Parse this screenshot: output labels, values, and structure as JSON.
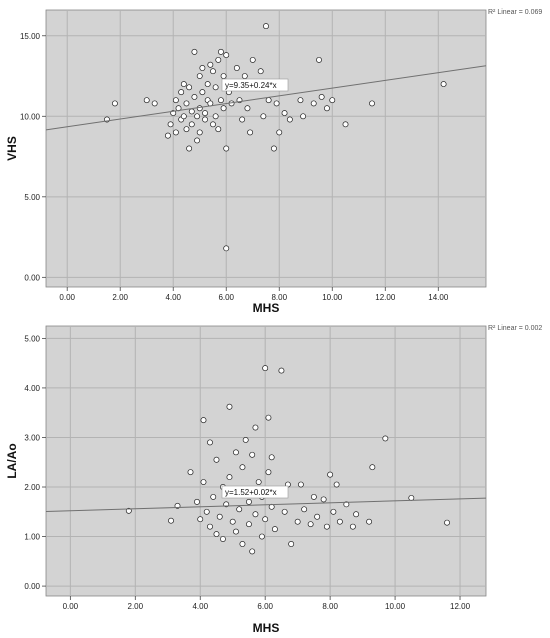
{
  "chart_data": [
    {
      "type": "scatter",
      "xlabel": "MHS",
      "ylabel": "VHS",
      "xlim": [
        -0.8,
        15.8
      ],
      "ylim": [
        -0.6,
        16.6
      ],
      "xticks": [
        0,
        2,
        4,
        6,
        8,
        10,
        12,
        14
      ],
      "xtick_labels": [
        "0.00",
        "2.00",
        "4.00",
        "6.00",
        "8.00",
        "10.00",
        "12.00",
        "14.00"
      ],
      "yticks": [
        0,
        5,
        10,
        15
      ],
      "ytick_labels": [
        "0.00",
        "5.00",
        "10.00",
        "15.00"
      ],
      "grid": true,
      "fit_line": {
        "intercept": 9.35,
        "slope": 0.24
      },
      "equation_label": "y=9.35+0.24*x",
      "r2_label": "R² Linear = 0.069",
      "series": [
        {
          "points": [
            [
              1.5,
              9.8
            ],
            [
              1.8,
              10.8
            ],
            [
              3.0,
              11.0
            ],
            [
              3.3,
              10.8
            ],
            [
              3.8,
              8.8
            ],
            [
              3.9,
              9.5
            ],
            [
              4.0,
              10.2
            ],
            [
              4.1,
              11.0
            ],
            [
              4.1,
              9.0
            ],
            [
              4.2,
              10.5
            ],
            [
              4.3,
              9.8
            ],
            [
              4.3,
              11.5
            ],
            [
              4.4,
              10.0
            ],
            [
              4.4,
              12.0
            ],
            [
              4.5,
              9.2
            ],
            [
              4.5,
              10.8
            ],
            [
              4.6,
              11.8
            ],
            [
              4.6,
              8.0
            ],
            [
              4.7,
              10.3
            ],
            [
              4.7,
              9.5
            ],
            [
              4.8,
              14.0
            ],
            [
              4.8,
              11.2
            ],
            [
              4.9,
              10.0
            ],
            [
              4.9,
              8.5
            ],
            [
              5.0,
              12.5
            ],
            [
              5.0,
              10.5
            ],
            [
              5.0,
              9.0
            ],
            [
              5.1,
              11.5
            ],
            [
              5.1,
              13.0
            ],
            [
              5.2,
              10.2
            ],
            [
              5.2,
              9.8
            ],
            [
              5.3,
              12.0
            ],
            [
              5.3,
              11.0
            ],
            [
              5.4,
              13.2
            ],
            [
              5.4,
              10.8
            ],
            [
              5.5,
              9.5
            ],
            [
              5.5,
              12.8
            ],
            [
              5.6,
              11.8
            ],
            [
              5.6,
              10.0
            ],
            [
              5.7,
              13.5
            ],
            [
              5.7,
              9.2
            ],
            [
              5.8,
              14.0
            ],
            [
              5.8,
              11.0
            ],
            [
              5.9,
              12.5
            ],
            [
              5.9,
              10.5
            ],
            [
              6.0,
              13.8
            ],
            [
              6.0,
              1.8
            ],
            [
              6.0,
              8.0
            ],
            [
              6.1,
              11.5
            ],
            [
              6.2,
              10.8
            ],
            [
              6.3,
              12.0
            ],
            [
              6.4,
              13.0
            ],
            [
              6.5,
              11.0
            ],
            [
              6.6,
              9.8
            ],
            [
              6.7,
              12.5
            ],
            [
              6.8,
              10.5
            ],
            [
              6.9,
              9.0
            ],
            [
              7.0,
              13.5
            ],
            [
              7.1,
              11.8
            ],
            [
              7.3,
              12.8
            ],
            [
              7.4,
              10.0
            ],
            [
              7.5,
              15.6
            ],
            [
              7.6,
              11.0
            ],
            [
              7.7,
              12.0
            ],
            [
              7.8,
              8.0
            ],
            [
              7.9,
              10.8
            ],
            [
              8.0,
              9.0
            ],
            [
              8.1,
              12.0
            ],
            [
              8.2,
              10.2
            ],
            [
              8.4,
              9.8
            ],
            [
              8.8,
              11.0
            ],
            [
              8.9,
              10.0
            ],
            [
              9.3,
              10.8
            ],
            [
              9.5,
              13.5
            ],
            [
              9.6,
              11.2
            ],
            [
              9.8,
              10.5
            ],
            [
              10.0,
              11.0
            ],
            [
              10.5,
              9.5
            ],
            [
              11.5,
              10.8
            ],
            [
              14.2,
              12.0
            ]
          ]
        }
      ]
    },
    {
      "type": "scatter",
      "xlabel": "MHS",
      "ylabel": "LA/Ao",
      "xlim": [
        -0.75,
        12.8
      ],
      "ylim": [
        -0.2,
        5.25
      ],
      "xticks": [
        0,
        2,
        4,
        6,
        8,
        10,
        12
      ],
      "xtick_labels": [
        "0.00",
        "2.00",
        "4.00",
        "6.00",
        "8.00",
        "10.00",
        "12.00"
      ],
      "yticks": [
        0,
        1,
        2,
        3,
        4,
        5
      ],
      "ytick_labels": [
        "0.00",
        "1.00",
        "2.00",
        "3.00",
        "4.00",
        "5.00"
      ],
      "grid": true,
      "fit_line": {
        "intercept": 1.52,
        "slope": 0.02
      },
      "equation_label": "y=1.52+0.02*x",
      "r2_label": "R² Linear = 0.002",
      "series": [
        {
          "points": [
            [
              1.8,
              1.52
            ],
            [
              3.1,
              1.32
            ],
            [
              3.3,
              1.62
            ],
            [
              3.7,
              2.3
            ],
            [
              3.9,
              1.7
            ],
            [
              4.0,
              1.35
            ],
            [
              4.1,
              3.35
            ],
            [
              4.1,
              2.1
            ],
            [
              4.2,
              1.5
            ],
            [
              4.3,
              2.9
            ],
            [
              4.3,
              1.2
            ],
            [
              4.4,
              1.8
            ],
            [
              4.5,
              1.05
            ],
            [
              4.5,
              2.55
            ],
            [
              4.6,
              1.4
            ],
            [
              4.7,
              2.0
            ],
            [
              4.7,
              0.95
            ],
            [
              4.8,
              1.65
            ],
            [
              4.9,
              3.62
            ],
            [
              4.9,
              2.2
            ],
            [
              5.0,
              1.3
            ],
            [
              5.0,
              1.85
            ],
            [
              5.1,
              2.7
            ],
            [
              5.1,
              1.1
            ],
            [
              5.2,
              1.55
            ],
            [
              5.3,
              2.4
            ],
            [
              5.3,
              0.85
            ],
            [
              5.4,
              1.95
            ],
            [
              5.4,
              2.95
            ],
            [
              5.5,
              1.25
            ],
            [
              5.5,
              1.7
            ],
            [
              5.6,
              2.65
            ],
            [
              5.6,
              0.7
            ],
            [
              5.7,
              1.45
            ],
            [
              5.7,
              3.2
            ],
            [
              5.8,
              2.1
            ],
            [
              5.9,
              1.0
            ],
            [
              5.9,
              1.8
            ],
            [
              6.0,
              4.4
            ],
            [
              6.0,
              1.35
            ],
            [
              6.1,
              3.4
            ],
            [
              6.1,
              2.3
            ],
            [
              6.2,
              1.6
            ],
            [
              6.2,
              2.6
            ],
            [
              6.3,
              1.15
            ],
            [
              6.4,
              1.9
            ],
            [
              6.5,
              4.35
            ],
            [
              6.6,
              1.5
            ],
            [
              6.7,
              2.05
            ],
            [
              6.8,
              0.85
            ],
            [
              7.0,
              1.3
            ],
            [
              7.1,
              2.05
            ],
            [
              7.2,
              1.55
            ],
            [
              7.4,
              1.25
            ],
            [
              7.5,
              1.8
            ],
            [
              7.6,
              1.4
            ],
            [
              7.8,
              1.75
            ],
            [
              7.9,
              1.2
            ],
            [
              8.0,
              2.25
            ],
            [
              8.1,
              1.5
            ],
            [
              8.2,
              2.05
            ],
            [
              8.3,
              1.3
            ],
            [
              8.5,
              1.65
            ],
            [
              8.7,
              1.2
            ],
            [
              8.8,
              1.45
            ],
            [
              9.2,
              1.3
            ],
            [
              9.3,
              2.4
            ],
            [
              9.7,
              2.98
            ],
            [
              10.5,
              1.78
            ],
            [
              11.6,
              1.28
            ]
          ]
        }
      ]
    }
  ]
}
